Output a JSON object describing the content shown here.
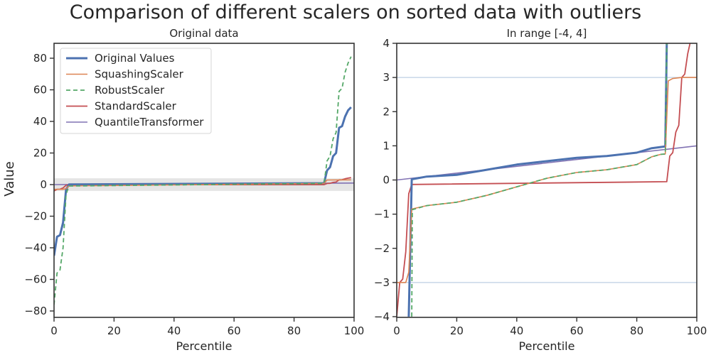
{
  "figure": {
    "title": "Comparison of different scalers on sorted data with outliers",
    "ylabel": "Value"
  },
  "colors": {
    "original": "#4c72b0",
    "squashing": "#dd8452",
    "robust": "#55a868",
    "standard": "#c44e52",
    "quantile": "#8172b3",
    "band": "#e5e5e5",
    "refline": "#c8d6e8"
  },
  "chart_data": [
    {
      "type": "line",
      "title": "Original data",
      "xlabel": "Percentile",
      "ylabel": "Value",
      "xlim": [
        0,
        100
      ],
      "ylim": [
        -85,
        90
      ],
      "xticks": [
        "0",
        "20",
        "40",
        "60",
        "80",
        "100"
      ],
      "yticks": [
        "80",
        "60",
        "40",
        "20",
        "0",
        "−20",
        "−40",
        "−60",
        "−80"
      ],
      "shaded_band": [
        -4,
        4
      ],
      "legend": [
        "Original Values",
        "SquashingScaler",
        "RobustScaler",
        "StandardScaler",
        "QuantileTransformer"
      ],
      "legend_position": "upper left",
      "series": [
        {
          "name": "Original Values",
          "x": [
            0,
            1,
            2,
            3,
            4,
            5,
            90,
            91,
            92,
            93,
            94,
            95,
            96,
            97,
            98,
            99
          ],
          "values": [
            -45,
            -33,
            -32,
            -24,
            -3,
            0.1,
            0.9,
            9,
            11,
            18,
            20,
            36,
            37,
            43,
            47,
            49
          ]
        },
        {
          "name": "SquashingScaler",
          "x": [
            0,
            3,
            4,
            5,
            90,
            91,
            99
          ],
          "values": [
            -3,
            -3,
            -2.5,
            -0.8,
            0.7,
            2.9,
            3
          ]
        },
        {
          "name": "RobustScaler",
          "x": [
            0,
            1,
            2,
            3,
            4,
            5,
            90,
            91,
            92,
            93,
            94,
            95,
            96,
            97,
            98,
            99
          ],
          "values": [
            -76,
            -56,
            -54,
            -40,
            -6,
            -0.9,
            0.8,
            15,
            18,
            29,
            33,
            59,
            61,
            71,
            77,
            81
          ]
        },
        {
          "name": "StandardScaler",
          "x": [
            0,
            1,
            2,
            3,
            4,
            5,
            90,
            91,
            92,
            93,
            94,
            95,
            96,
            97,
            98,
            99
          ],
          "values": [
            -4,
            -3,
            -2.9,
            -2.1,
            -0.4,
            -0.1,
            -0.05,
            0.7,
            0.8,
            1.4,
            1.6,
            3,
            3.1,
            3.7,
            4.1,
            4.4
          ]
        },
        {
          "name": "QuantileTransformer",
          "x": [
            0,
            100
          ],
          "values": [
            0,
            1
          ]
        }
      ]
    },
    {
      "type": "line",
      "title": "In range [-4, 4]",
      "xlabel": "Percentile",
      "ylabel": "",
      "xlim": [
        0,
        100
      ],
      "ylim": [
        -4,
        4
      ],
      "xticks": [
        "0",
        "20",
        "40",
        "60",
        "80",
        "100"
      ],
      "yticks": [
        "4",
        "3",
        "2",
        "1",
        "0",
        "−1",
        "−2",
        "−3",
        "−4"
      ],
      "reference_lines": [
        3,
        -3
      ],
      "series": [
        {
          "name": "Original Values",
          "x": [
            4,
            5,
            10,
            20,
            30,
            40,
            50,
            60,
            70,
            80,
            85,
            89.5,
            90
          ],
          "values": [
            -4,
            0.02,
            0.1,
            0.15,
            0.3,
            0.45,
            0.55,
            0.65,
            0.7,
            0.8,
            0.93,
            0.98,
            4
          ]
        },
        {
          "name": "SquashingScaler",
          "x": [
            0,
            1,
            3,
            4,
            5,
            10,
            20,
            30,
            40,
            50,
            60,
            70,
            80,
            85,
            88,
            89.5,
            90.5,
            92,
            95,
            100
          ],
          "values": [
            -3,
            -3,
            -3,
            -2.7,
            -0.85,
            -0.75,
            -0.65,
            -0.45,
            -0.2,
            0.05,
            0.22,
            0.3,
            0.45,
            0.68,
            0.75,
            0.76,
            2.9,
            2.97,
            3,
            3
          ]
        },
        {
          "name": "RobustScaler",
          "x": [
            5,
            5.2,
            10,
            20,
            30,
            40,
            50,
            60,
            70,
            80,
            85,
            88,
            89.5,
            90
          ],
          "values": [
            -4,
            -0.87,
            -0.75,
            -0.65,
            -0.45,
            -0.2,
            0.05,
            0.22,
            0.3,
            0.45,
            0.68,
            0.75,
            0.76,
            4
          ]
        },
        {
          "name": "StandardScaler",
          "x": [
            0,
            1,
            2,
            3,
            4,
            5,
            90,
            91,
            92,
            93,
            94,
            95,
            96,
            97,
            98,
            99
          ],
          "values": [
            -4,
            -3,
            -2.9,
            -2.1,
            -0.4,
            -0.13,
            -0.05,
            0.7,
            0.8,
            1.4,
            1.6,
            3,
            3.1,
            3.7,
            4.1,
            4.4
          ]
        },
        {
          "name": "QuantileTransformer",
          "x": [
            0,
            100
          ],
          "values": [
            0,
            1
          ]
        }
      ]
    }
  ]
}
